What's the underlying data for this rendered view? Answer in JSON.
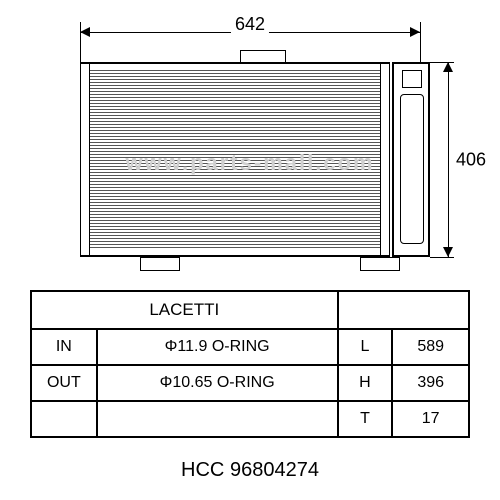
{
  "dimensions": {
    "width_label": "642",
    "height_label": "406"
  },
  "watermark": "www.parts-mall.com",
  "table": {
    "title": "LACETTI",
    "rows": [
      {
        "port": "IN",
        "spec": "Φ11.9 O-RING",
        "dim": "L",
        "val": "589"
      },
      {
        "port": "OUT",
        "spec": "Φ10.65 O-RING",
        "dim": "H",
        "val": "396"
      },
      {
        "port": "",
        "spec": "",
        "dim": "T",
        "val": "17"
      }
    ]
  },
  "footer": {
    "brand": "HCC",
    "part_number": "96804274"
  },
  "colors": {
    "line": "#000000",
    "background": "#ffffff",
    "watermark": "#d0d0d0"
  }
}
